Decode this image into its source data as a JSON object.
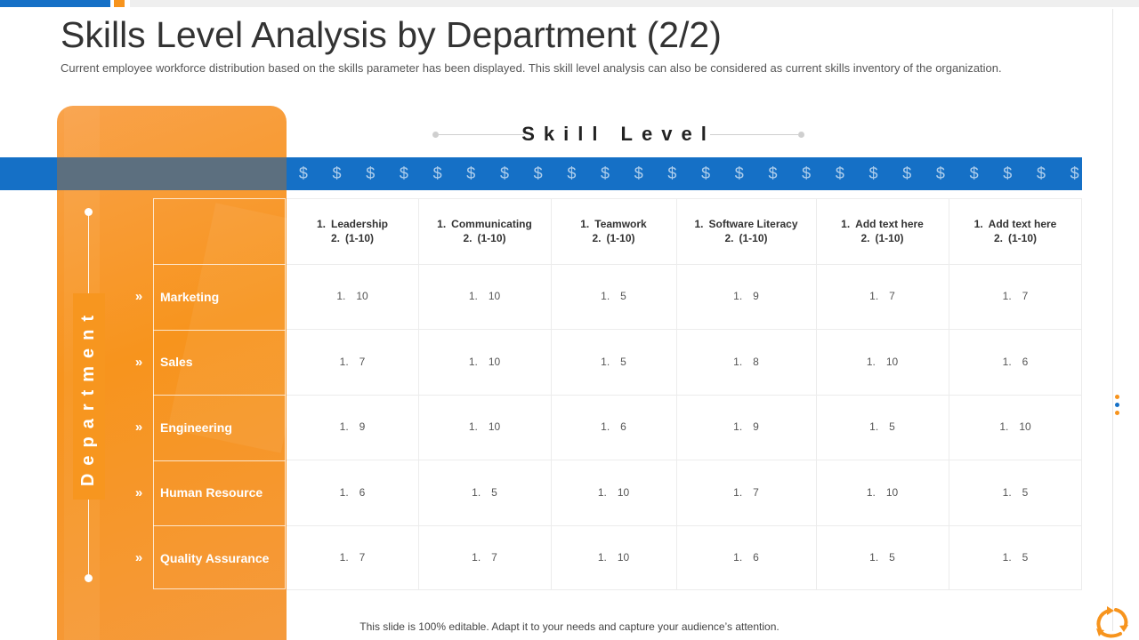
{
  "page": {
    "title": "Skills Level Analysis by Department (2/2)",
    "subtitle": "Current employee workforce distribution based on the skills parameter has been displayed. This skill level analysis can also be considered as current skills inventory of the organization.",
    "footer": "This slide is 100% editable. Adapt it to your needs and capture your audience’s attention."
  },
  "colors": {
    "orange": "#f7941d",
    "blue": "#1570c6"
  },
  "icons": {
    "band_symbol": "$",
    "row_marker": "»"
  },
  "table": {
    "skill_header": "Skill Level",
    "department_header": "Department",
    "columns": [
      {
        "n1": "1.",
        "label": "Leadership",
        "n2": "2.",
        "range": "(1-10)"
      },
      {
        "n1": "1.",
        "label": "Communicating",
        "n2": "2.",
        "range": "(1-10)"
      },
      {
        "n1": "1.",
        "label": "Teamwork",
        "n2": "2.",
        "range": "(1-10)"
      },
      {
        "n1": "1.",
        "label": "Software Literacy",
        "n2": "2.",
        "range": "(1-10)"
      },
      {
        "n1": "1.",
        "label": "Add text here",
        "n2": "2.",
        "range": "(1-10)"
      },
      {
        "n1": "1.",
        "label": "Add text here",
        "n2": "2.",
        "range": "(1-10)"
      }
    ],
    "rows": [
      {
        "department": "Marketing",
        "values": [
          "10",
          "10",
          "5",
          "9",
          "7",
          "7"
        ]
      },
      {
        "department": "Sales",
        "values": [
          "7",
          "10",
          "5",
          "8",
          "10",
          "6"
        ]
      },
      {
        "department": "Engineering",
        "values": [
          "9",
          "10",
          "6",
          "9",
          "5",
          "10"
        ]
      },
      {
        "department": "Human Resource",
        "values": [
          "6",
          "5",
          "10",
          "7",
          "10",
          "5"
        ]
      },
      {
        "department": "Quality Assurance",
        "values": [
          "7",
          "7",
          "10",
          "6",
          "5",
          "5"
        ]
      }
    ],
    "value_prefix": "1."
  }
}
